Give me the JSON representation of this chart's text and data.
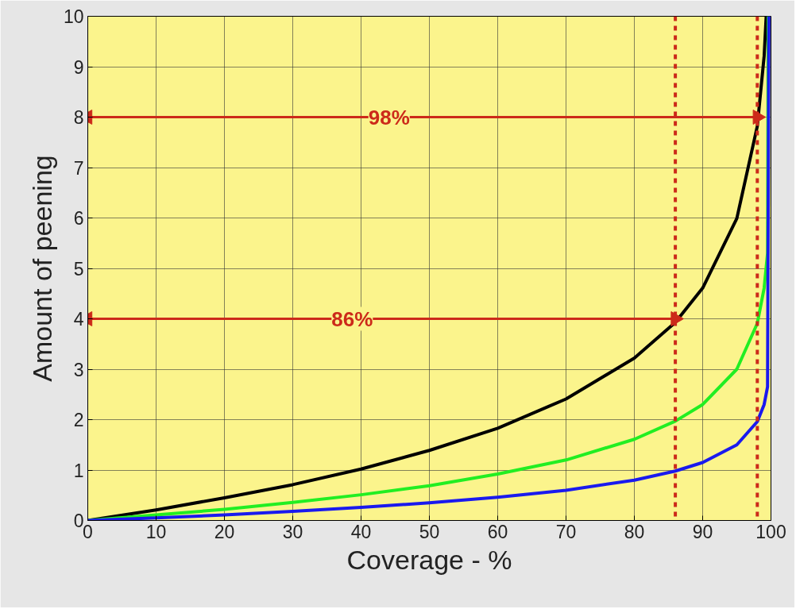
{
  "chart_data": {
    "type": "line",
    "xlabel": "Coverage - %",
    "ylabel": "Amount of peening",
    "xlim": [
      0,
      100
    ],
    "ylim": [
      0,
      10
    ],
    "xticks": [
      0,
      10,
      20,
      30,
      40,
      50,
      60,
      70,
      80,
      90,
      100
    ],
    "yticks": [
      0,
      1,
      2,
      3,
      4,
      5,
      6,
      7,
      8,
      9,
      10
    ],
    "grid": true,
    "line_style": "solid",
    "series": [
      {
        "color": "#000000",
        "x": [
          0,
          10,
          20,
          30,
          40,
          50,
          60,
          70,
          80,
          86,
          90,
          95,
          98,
          99,
          99.3
        ],
        "values": [
          0,
          0.21,
          0.45,
          0.71,
          1.02,
          1.39,
          1.83,
          2.41,
          3.22,
          3.93,
          4.61,
          5.99,
          7.82,
          9.21,
          10
        ]
      },
      {
        "color": "#22ee22",
        "x": [
          0,
          10,
          20,
          30,
          40,
          50,
          60,
          70,
          80,
          86,
          90,
          95,
          98,
          99,
          99.5,
          99.6
        ],
        "values": [
          0,
          0.11,
          0.22,
          0.36,
          0.51,
          0.69,
          0.92,
          1.2,
          1.61,
          1.97,
          2.3,
          3.0,
          3.91,
          4.61,
          5.3,
          10
        ]
      },
      {
        "color": "#1a1aee",
        "x": [
          0,
          10,
          20,
          30,
          40,
          50,
          60,
          70,
          80,
          86,
          90,
          95,
          98,
          99,
          99.5,
          99.7
        ],
        "values": [
          0,
          0.05,
          0.11,
          0.18,
          0.26,
          0.35,
          0.46,
          0.6,
          0.8,
          0.98,
          1.15,
          1.5,
          1.96,
          2.3,
          2.65,
          10
        ]
      },
      {
        "type": "line",
        "marker": "triangle",
        "color": "#cc2a1a",
        "x": [
          0,
          98
        ],
        "values": [
          8,
          8
        ]
      },
      {
        "type": "line",
        "marker": "triangle",
        "color": "#cc2a1a",
        "x": [
          0,
          86
        ],
        "values": [
          4,
          4
        ]
      }
    ],
    "ref_lines": [
      {
        "axis": "x",
        "value": 86,
        "label": null,
        "color": "#cc2a1a",
        "line_style": "dashed"
      },
      {
        "axis": "x",
        "value": 98,
        "label": null,
        "color": "#cc2a1a",
        "line_style": "dashed"
      }
    ],
    "annotations": [
      "98%",
      "86%"
    ]
  }
}
